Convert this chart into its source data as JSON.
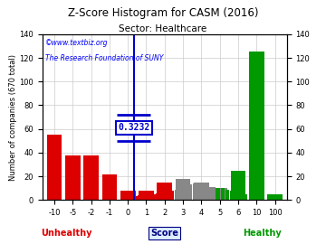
{
  "title": "Z-Score Histogram for CASM (2016)",
  "subtitle": "Sector: Healthcare",
  "watermark1": "©www.textbiz.org",
  "watermark2": "The Research Foundation of SUNY",
  "xlabel_center": "Score",
  "xlabel_left": "Unhealthy",
  "xlabel_right": "Healthy",
  "ylabel_left": "Number of companies (670 total)",
  "zscore_label": "0.3232",
  "zscore_bin_index": 4.3232,
  "bar_data": [
    {
      "bin": -10,
      "idx": 0,
      "height": 55,
      "color": "#dd0000"
    },
    {
      "bin": -5,
      "idx": 1,
      "height": 38,
      "color": "#dd0000"
    },
    {
      "bin": -2,
      "idx": 2,
      "height": 38,
      "color": "#dd0000"
    },
    {
      "bin": -1,
      "idx": 3,
      "height": 22,
      "color": "#dd0000"
    },
    {
      "bin": 0,
      "idx": 4,
      "height": 8,
      "color": "#dd0000"
    },
    {
      "bin": 1,
      "idx": 5,
      "height": 8,
      "color": "#dd0000"
    },
    {
      "bin": 2,
      "idx": 6,
      "height": 15,
      "color": "#dd0000"
    },
    {
      "bin": 3,
      "idx": 7,
      "height": 18,
      "color": "#888888"
    },
    {
      "bin": 4,
      "idx": 8,
      "height": 15,
      "color": "#888888"
    },
    {
      "bin": 5,
      "idx": 9,
      "height": 10,
      "color": "#888888"
    },
    {
      "bin": 6,
      "idx": 10,
      "height": 25,
      "color": "#009900"
    },
    {
      "bin": 10,
      "idx": 11,
      "height": 125,
      "color": "#009900"
    },
    {
      "bin": 100,
      "idx": 12,
      "height": 5,
      "color": "#009900"
    }
  ],
  "sub_bars": [
    {
      "idx": 4.15,
      "height": 3,
      "color": "#dd0000"
    },
    {
      "idx": 4.4,
      "height": 3,
      "color": "#dd0000"
    },
    {
      "idx": 4.65,
      "height": 4,
      "color": "#dd0000"
    },
    {
      "idx": 4.9,
      "height": 4,
      "color": "#dd0000"
    },
    {
      "idx": 5.15,
      "height": 5,
      "color": "#dd0000"
    },
    {
      "idx": 5.4,
      "height": 5,
      "color": "#dd0000"
    },
    {
      "idx": 5.65,
      "height": 6,
      "color": "#dd0000"
    },
    {
      "idx": 5.9,
      "height": 6,
      "color": "#dd0000"
    },
    {
      "idx": 6.15,
      "height": 8,
      "color": "#dd0000"
    },
    {
      "idx": 6.4,
      "height": 8,
      "color": "#dd0000"
    },
    {
      "idx": 6.65,
      "height": 9,
      "color": "#888888"
    },
    {
      "idx": 6.9,
      "height": 10,
      "color": "#888888"
    },
    {
      "idx": 7.15,
      "height": 12,
      "color": "#888888"
    },
    {
      "idx": 7.4,
      "height": 13,
      "color": "#888888"
    },
    {
      "idx": 7.65,
      "height": 14,
      "color": "#888888"
    },
    {
      "idx": 7.9,
      "height": 14,
      "color": "#888888"
    },
    {
      "idx": 8.15,
      "height": 12,
      "color": "#888888"
    },
    {
      "idx": 8.4,
      "height": 11,
      "color": "#888888"
    },
    {
      "idx": 8.65,
      "height": 11,
      "color": "#888888"
    },
    {
      "idx": 8.9,
      "height": 10,
      "color": "#009900"
    },
    {
      "idx": 9.15,
      "height": 10,
      "color": "#009900"
    },
    {
      "idx": 9.4,
      "height": 9,
      "color": "#009900"
    },
    {
      "idx": 9.65,
      "height": 8,
      "color": "#009900"
    },
    {
      "idx": 9.9,
      "height": 7,
      "color": "#009900"
    },
    {
      "idx": 10.15,
      "height": 6,
      "color": "#009900"
    },
    {
      "idx": 10.4,
      "height": 5,
      "color": "#009900"
    }
  ],
  "xtick_labels": [
    "-10",
    "-5",
    "-2",
    "-1",
    "0",
    "1",
    "2",
    "3",
    "4",
    "5",
    "6",
    "10",
    "100"
  ],
  "xtick_idx": [
    0,
    1,
    2,
    3,
    4,
    5,
    6,
    7,
    8,
    9,
    10,
    11,
    12
  ],
  "ylim": [
    0,
    140
  ],
  "yticks": [
    0,
    20,
    40,
    60,
    80,
    100,
    120,
    140
  ],
  "grid_color": "#cccccc",
  "bg_color": "#ffffff",
  "title_fontsize": 8.5,
  "subtitle_fontsize": 7.5,
  "watermark_fontsize": 5.5,
  "axis_label_fontsize": 6,
  "tick_fontsize": 6,
  "marker_color": "#0000cc",
  "unhealthy_color": "#dd0000",
  "healthy_color": "#009900"
}
